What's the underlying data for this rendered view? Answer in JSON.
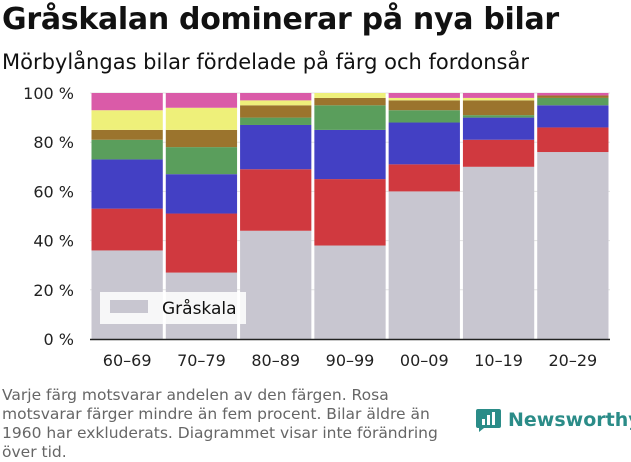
{
  "header": {
    "title": "Gråskalan dominerar på nya bilar",
    "subtitle": "Mörbylångas bilar fördelade på färg och fordonsår"
  },
  "footer": {
    "note": "Varje färg motsvarar andelen av den färgen. Rosa motsvarar färger mindre än fem procent. Bilar äldre än 1960 har exkluderats. Diagrammet visar inte förändring över tid.",
    "brand": "Newsworthy",
    "brand_color": "#2b8c88",
    "brand_icon": "bar-chart-logo-icon"
  },
  "chart_data": {
    "type": "bar",
    "stacked": true,
    "normalized": true,
    "categories": [
      "60–69",
      "70–79",
      "80–89",
      "90–99",
      "00–09",
      "10–19",
      "20–29"
    ],
    "y_ticks": [
      "0 %",
      "20 %",
      "40 %",
      "60 %",
      "80 %",
      "100 %"
    ],
    "ylim": [
      0,
      100
    ],
    "grid": true,
    "legend": {
      "position": "bottom-left",
      "shown_series": [
        0
      ]
    },
    "series": [
      {
        "name": "Gråskala",
        "color": "#c8c6d0",
        "values": [
          36,
          27,
          44,
          38,
          60,
          70,
          76
        ]
      },
      {
        "color": "#d0393f",
        "values": [
          17,
          24,
          25,
          27,
          11,
          11,
          10
        ]
      },
      {
        "color": "#4340c4",
        "values": [
          20,
          16,
          18,
          20,
          17,
          9,
          9
        ]
      },
      {
        "color": "#5a9e5c",
        "values": [
          8,
          11,
          3,
          10,
          5,
          1,
          3
        ]
      },
      {
        "color": "#9b742d",
        "values": [
          4,
          7,
          5,
          3,
          4,
          6,
          1
        ]
      },
      {
        "color": "#eef07a",
        "values": [
          8,
          9,
          2,
          2,
          1,
          1,
          0
        ]
      },
      {
        "color": "#da5ba8",
        "values": [
          7,
          6,
          3,
          0,
          2,
          2,
          1
        ]
      }
    ]
  }
}
